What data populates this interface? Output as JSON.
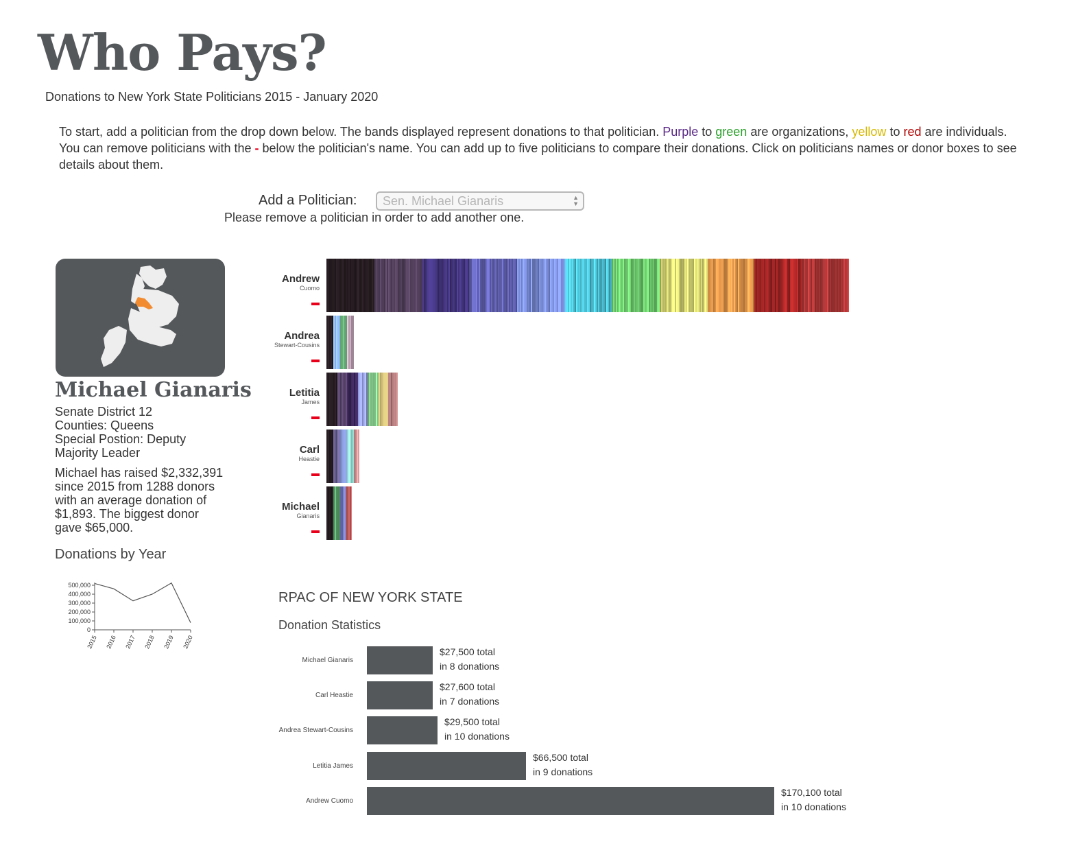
{
  "header": {
    "title": "Who Pays?",
    "subtitle": "Donations to New York State Politicians 2015 - January 2020"
  },
  "instructions": {
    "part1": "To start, add a politician from the drop down below. The bands displayed represent donations to that politician. ",
    "purple": "Purple",
    "to1": " to ",
    "green": "green",
    "part2": " are organizations, ",
    "yellow": "yellow",
    "to2": " to ",
    "red": "red",
    "part3": " are individuals. You can remove politicians with the ",
    "minus": "-",
    "part4": " below the politician's name. You can add up to five politicians to compare their donations. Click on politicians names or donor boxes to see details about them."
  },
  "controls": {
    "add_label": "Add a Politician:",
    "select_value": "Sen. Michael Gianaris",
    "remove_message": "Please remove a politician in order to add another one."
  },
  "profile": {
    "name": "Michael Gianaris",
    "details": [
      "Senate District 12",
      "Counties: Queens",
      "Special Postion: Deputy Majority Leader"
    ],
    "summary": "Michael has raised $2,332,391 since 2015 from 1288 donors with an average donation of $1,893. The biggest donor gave $65,000.",
    "map_icon": "nyc-borough-map-icon",
    "highlight_color": "#f28b30",
    "card_color": "#55585b"
  },
  "year_chart_data": {
    "type": "line",
    "title": "Donations by Year",
    "x": [
      "2015",
      "2016",
      "2017",
      "2018",
      "2019",
      "2020"
    ],
    "values": [
      520000,
      460000,
      325000,
      400000,
      525000,
      80000
    ],
    "ylim": [
      0,
      500000
    ],
    "y_ticks": [
      "0",
      "100,000",
      "200,000",
      "300,000",
      "400,000",
      "500,000"
    ]
  },
  "politicians": [
    {
      "first": "Andrew",
      "last": "Cuomo"
    },
    {
      "first": "Andrea",
      "last": "Stewart-Cousins"
    },
    {
      "first": "Letitia",
      "last": "James"
    },
    {
      "first": "Carl",
      "last": "Heastie"
    },
    {
      "first": "Michael",
      "last": "Gianaris"
    }
  ],
  "selected_donor": {
    "name": "RPAC OF NEW YORK STATE",
    "stats_title": "Donation Statistics"
  },
  "chart_data": {
    "type": "bar",
    "orientation": "horizontal",
    "categories": [
      "Michael Gianaris",
      "Carl Heastie",
      "Andrea Stewart-Cousins",
      "Letitia James",
      "Andrew Cuomo"
    ],
    "values": [
      27500,
      27600,
      29500,
      66500,
      170100
    ],
    "donation_counts": [
      8,
      7,
      10,
      9,
      10
    ],
    "labels_total": [
      "$27,500 total",
      "$27,600 total",
      "$29,500 total",
      "$66,500 total",
      "$170,100 total"
    ],
    "labels_count": [
      "in 8 donations",
      "in 7 donations",
      "in 10 donations",
      "in 9 donations",
      "in 10 donations"
    ],
    "bar_color": "#55585b"
  }
}
